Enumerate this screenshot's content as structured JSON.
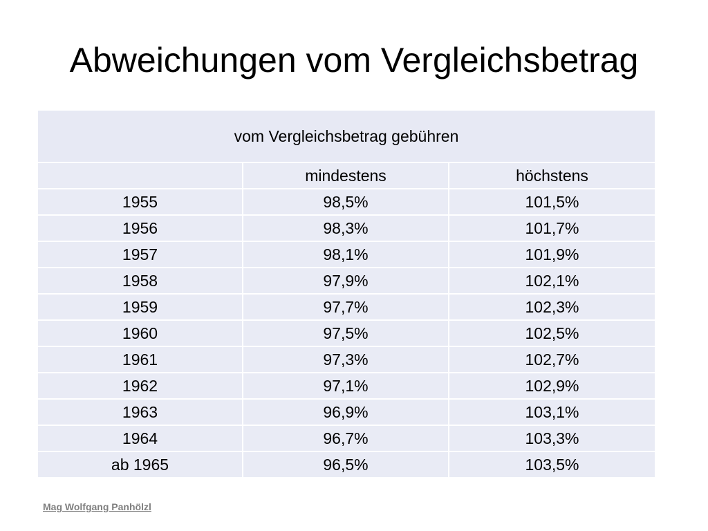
{
  "slide": {
    "title": "Abweichungen vom Vergleichsbetrag",
    "footer": "Mag Wolfgang Panhölzl"
  },
  "table": {
    "group_header": "vom Vergleichsbetrag gebühren",
    "columns": [
      "",
      "mindestens",
      "höchstens"
    ],
    "rows": [
      [
        "1955",
        "98,5%",
        "101,5%"
      ],
      [
        "1956",
        "98,3%",
        "101,7%"
      ],
      [
        "1957",
        "98,1%",
        "101,9%"
      ],
      [
        "1958",
        "97,9%",
        "102,1%"
      ],
      [
        "1959",
        "97,7%",
        "102,3%"
      ],
      [
        "1960",
        "97,5%",
        "102,5%"
      ],
      [
        "1961",
        "97,3%",
        "102,7%"
      ],
      [
        "1962",
        "97,1%",
        "102,9%"
      ],
      [
        "1963",
        "96,9%",
        "103,1%"
      ],
      [
        "1964",
        "96,7%",
        "103,3%"
      ],
      [
        "ab 1965",
        "96,5%",
        "103,5%"
      ]
    ]
  },
  "colors": {
    "cell_background": "#e9ebf5",
    "footer_text": "#7f7f7f"
  }
}
